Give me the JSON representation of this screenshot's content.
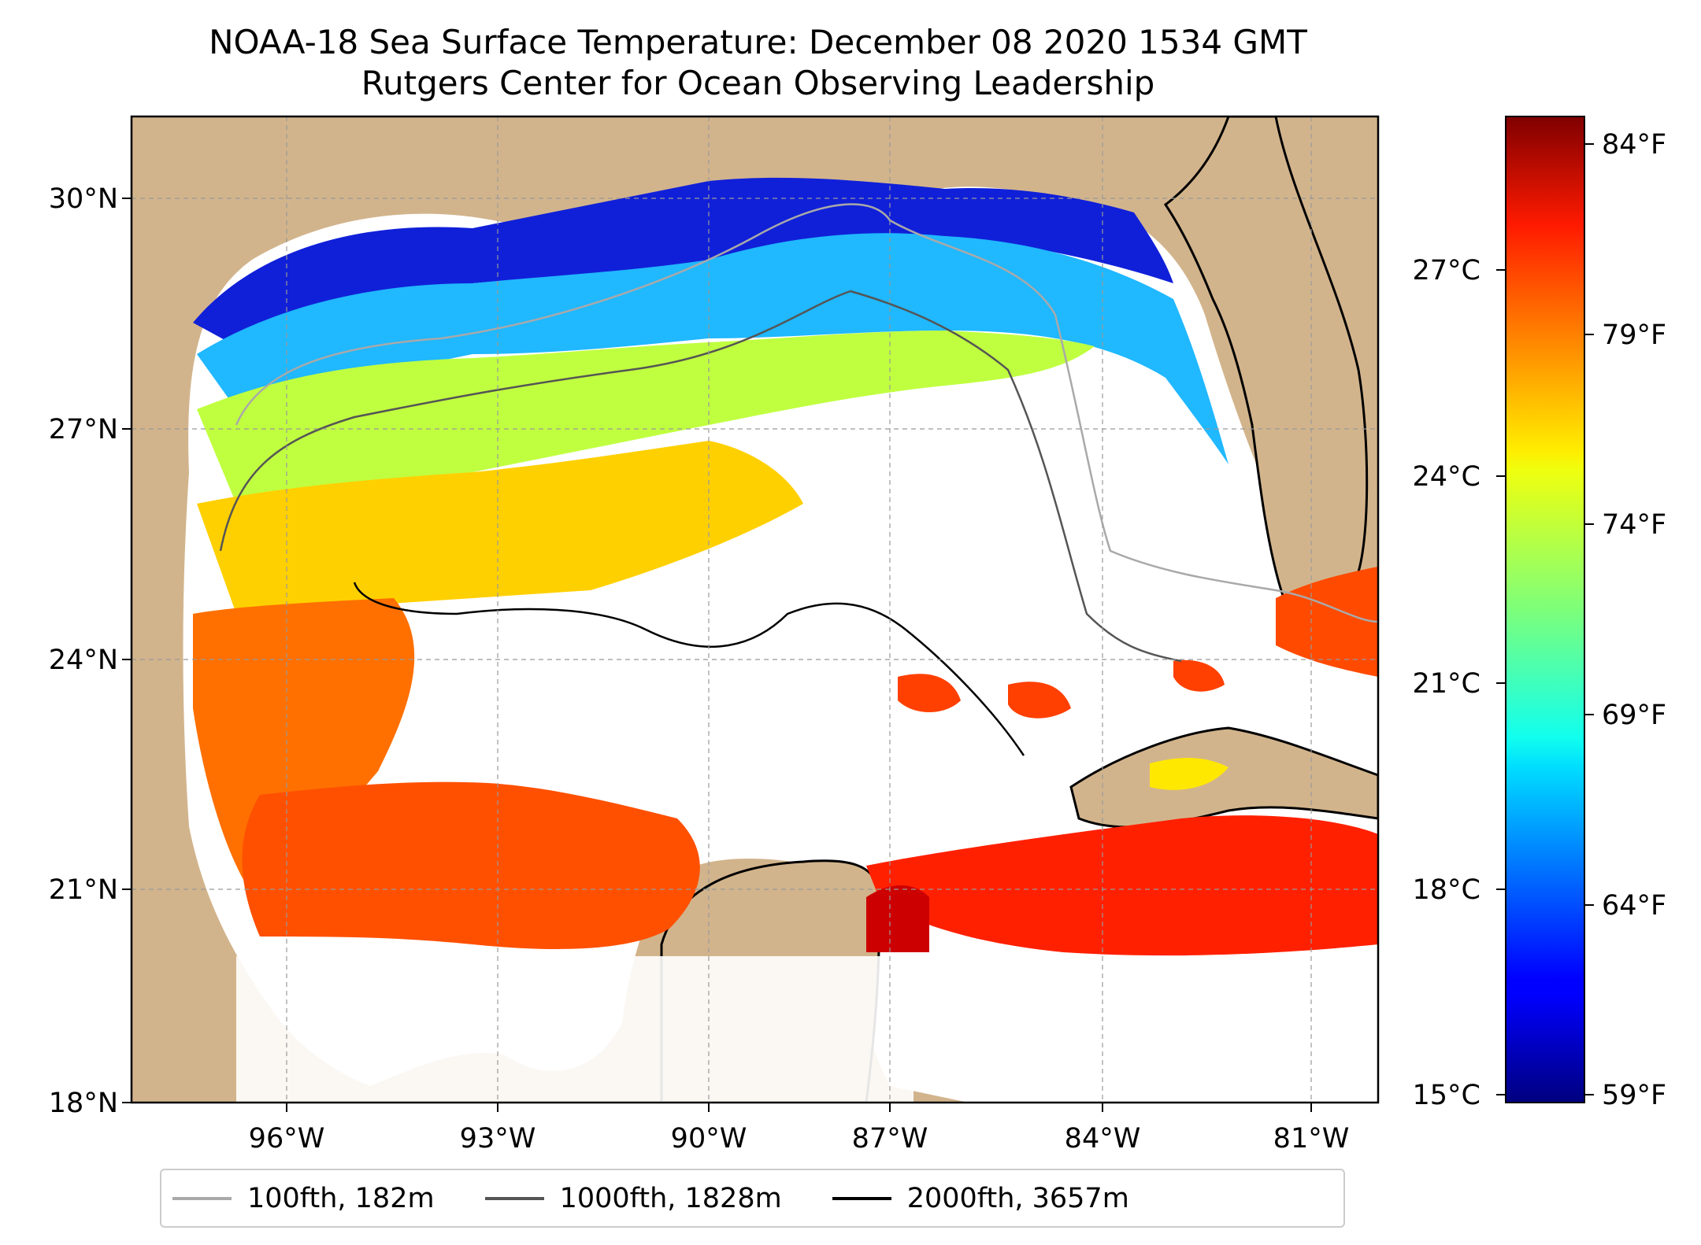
{
  "title": {
    "line1": "NOAA-18 Sea Surface Temperature: December 08 2020 1534 GMT",
    "line2": "Rutgers Center for Ocean Observing Leadership"
  },
  "map": {
    "region": "Gulf of Mexico",
    "land_color": "#d2b48c",
    "no_data_color": "#ffffff",
    "lat_ticks": [
      "30°N",
      "27°N",
      "24°N",
      "21°N",
      "18°N"
    ],
    "lon_ticks": [
      "96°W",
      "93°W",
      "90°W",
      "87°W",
      "84°W",
      "81°W"
    ],
    "lat_range": [
      18,
      31
    ],
    "lon_range": [
      -98,
      -80.5
    ]
  },
  "colorbar": {
    "colormap": "jet",
    "celsius_ticks": [
      "27°C",
      "24°C",
      "21°C",
      "18°C",
      "15°C"
    ],
    "fahrenheit_ticks": [
      "84°F",
      "79°F",
      "74°F",
      "69°F",
      "64°F",
      "59°F"
    ],
    "range_f": [
      59,
      85
    ]
  },
  "legend": [
    {
      "label": "100fth, 182m",
      "color": "#a9a9a9"
    },
    {
      "label": "1000fth, 1828m",
      "color": "#555555"
    },
    {
      "label": "2000fth, 3657m",
      "color": "#000000"
    }
  ]
}
